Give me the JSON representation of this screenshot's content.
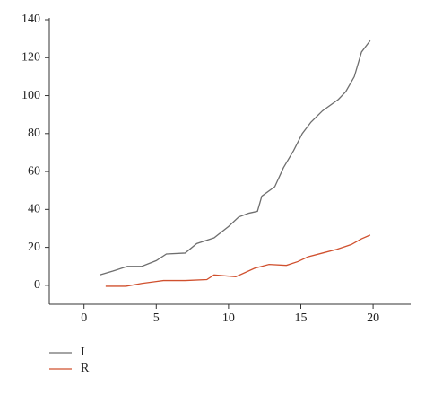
{
  "chart_data": {
    "type": "line",
    "series": [
      {
        "name": "I",
        "color": "#6e6e6e",
        "x": [
          1.1,
          2,
          3,
          4,
          5,
          5.7,
          7,
          7.8,
          9,
          10,
          10.7,
          11.4,
          12,
          12.3,
          13.2,
          13.8,
          14.5,
          15.1,
          15.7,
          16.5,
          17.6,
          18.1,
          18.7,
          19.2,
          19.8
        ],
        "values": [
          5.5,
          7.5,
          10,
          10,
          13,
          16.5,
          17,
          22,
          25,
          31,
          36,
          38,
          39,
          47,
          52,
          62,
          71,
          80,
          86,
          92,
          98,
          102,
          110,
          123,
          129
        ]
      },
      {
        "name": "R",
        "color": "#d0502e",
        "x": [
          1.5,
          2.9,
          4,
          5,
          5.5,
          7,
          8.5,
          9,
          10.5,
          11.8,
          12.8,
          14,
          14.8,
          15.5,
          16.5,
          17.5,
          18.5,
          19.2,
          19.8
        ],
        "values": [
          -0.5,
          -0.5,
          1,
          2,
          2.5,
          2.5,
          3,
          5.5,
          4.5,
          9,
          11,
          10.5,
          12.5,
          15,
          17,
          19,
          21.5,
          24.5,
          26.5
        ]
      }
    ],
    "xlim": [
      -2.4,
      22.6
    ],
    "xticks": [
      0,
      5,
      10,
      15,
      20
    ],
    "ylim": [
      -10,
      140
    ],
    "yticks": [
      0,
      20,
      40,
      60,
      80,
      100,
      120,
      140
    ],
    "legend": "bottom-left"
  }
}
